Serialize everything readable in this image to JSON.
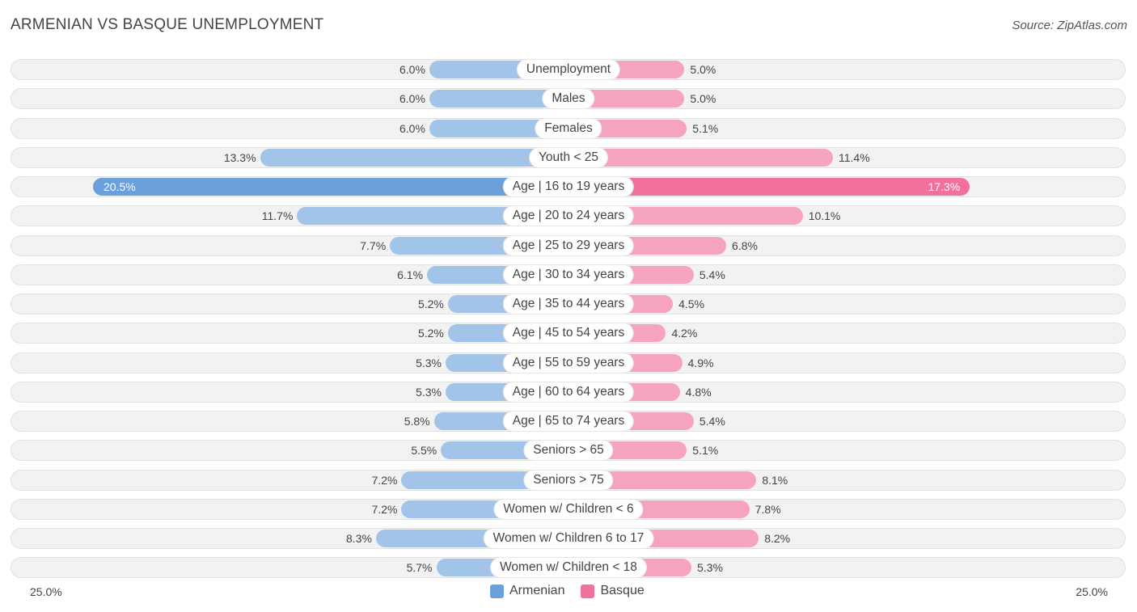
{
  "header": {
    "title": "ARMENIAN VS BASQUE UNEMPLOYMENT",
    "source": "Source: ZipAtlas.com"
  },
  "colors": {
    "armenian": "#a3c4e9",
    "armenian_highlight": "#6aa0dc",
    "basque": "#f6a3bf",
    "basque_highlight": "#f2719b"
  },
  "chart_data": {
    "type": "bar",
    "orientation": "horizontal-diverging",
    "title": "ARMENIAN VS BASQUE UNEMPLOYMENT",
    "xlim": [
      0,
      25.0
    ],
    "axis_left_label": "25.0%",
    "axis_right_label": "25.0%",
    "legend_position": "bottom-center",
    "categories": [
      "Unemployment",
      "Males",
      "Females",
      "Youth < 25",
      "Age | 16 to 19 years",
      "Age | 20 to 24 years",
      "Age | 25 to 29 years",
      "Age | 30 to 34 years",
      "Age | 35 to 44 years",
      "Age | 45 to 54 years",
      "Age | 55 to 59 years",
      "Age | 60 to 64 years",
      "Age | 65 to 74 years",
      "Seniors > 65",
      "Seniors > 75",
      "Women w/ Children < 6",
      "Women w/ Children 6 to 17",
      "Women w/ Children < 18"
    ],
    "series": [
      {
        "name": "Armenian",
        "values": [
          6.0,
          6.0,
          6.0,
          13.3,
          20.5,
          11.7,
          7.7,
          6.1,
          5.2,
          5.2,
          5.3,
          5.3,
          5.8,
          5.5,
          7.2,
          7.2,
          8.3,
          5.7
        ],
        "labels": [
          "6.0%",
          "6.0%",
          "6.0%",
          "13.3%",
          "20.5%",
          "11.7%",
          "7.7%",
          "6.1%",
          "5.2%",
          "5.2%",
          "5.3%",
          "5.3%",
          "5.8%",
          "5.5%",
          "7.2%",
          "7.2%",
          "8.3%",
          "5.7%"
        ]
      },
      {
        "name": "Basque",
        "values": [
          5.0,
          5.0,
          5.1,
          11.4,
          17.3,
          10.1,
          6.8,
          5.4,
          4.5,
          4.2,
          4.9,
          4.8,
          5.4,
          5.1,
          8.1,
          7.8,
          8.2,
          5.3
        ],
        "labels": [
          "5.0%",
          "5.0%",
          "5.1%",
          "11.4%",
          "17.3%",
          "10.1%",
          "6.8%",
          "5.4%",
          "4.5%",
          "4.2%",
          "4.9%",
          "4.8%",
          "5.4%",
          "5.1%",
          "8.1%",
          "7.8%",
          "8.2%",
          "5.3%"
        ]
      }
    ],
    "highlight_index": 4
  },
  "legend": {
    "armenian": "Armenian",
    "basque": "Basque"
  }
}
